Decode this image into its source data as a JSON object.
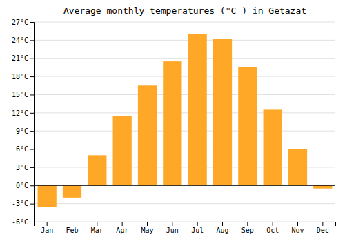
{
  "chart_data": {
    "type": "bar",
    "title": "Average monthly temperatures (°C ) in Getazat",
    "categories": [
      "Jan",
      "Feb",
      "Mar",
      "Apr",
      "May",
      "Jun",
      "Jul",
      "Aug",
      "Sep",
      "Oct",
      "Nov",
      "Dec"
    ],
    "values": [
      -3.5,
      -2.0,
      5.0,
      11.5,
      16.5,
      20.5,
      25.0,
      24.2,
      19.5,
      12.5,
      6.0,
      -0.5
    ],
    "color": "#FFA726",
    "ylim": [
      -6,
      27
    ],
    "yticks": [
      {
        "value": -6,
        "label": "-6°C"
      },
      {
        "value": -3,
        "label": "-3°C"
      },
      {
        "value": 0,
        "label": "0°C"
      },
      {
        "value": 3,
        "label": "3°C"
      },
      {
        "value": 6,
        "label": "6°C"
      },
      {
        "value": 9,
        "label": "9°C"
      },
      {
        "value": 12,
        "label": "12°C"
      },
      {
        "value": 15,
        "label": "15°C"
      },
      {
        "value": 18,
        "label": "18°C"
      },
      {
        "value": 21,
        "label": "21°C"
      },
      {
        "value": 24,
        "label": "24°C"
      },
      {
        "value": 27,
        "label": "27°C"
      }
    ],
    "grid": true
  }
}
